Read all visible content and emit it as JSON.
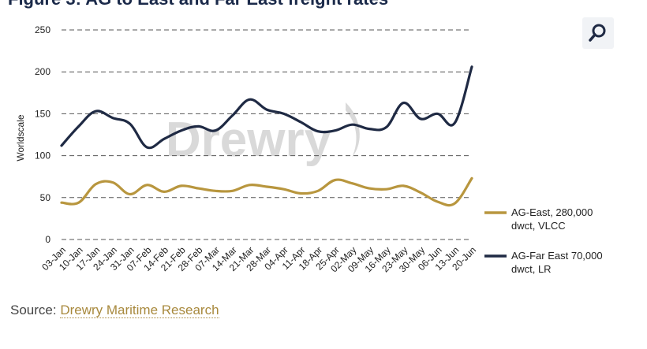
{
  "figure": {
    "title": "Figure 3: AG to East and Far East freight rates"
  },
  "zoom": {
    "icon": "magnifier-icon"
  },
  "source": {
    "prefix": "Source:",
    "link_text": "Drewry Maritime Research"
  },
  "watermark": {
    "text": "Drewry"
  },
  "colors": {
    "series_gold": "#b8963e",
    "series_navy": "#1f2a44",
    "grid": "#555555",
    "watermark": "#d9d9d9"
  },
  "chart_data": {
    "type": "line",
    "title": "",
    "xlabel": "",
    "ylabel": "Worldscale",
    "ylim": [
      0,
      250
    ],
    "yticks": [
      0,
      50,
      100,
      150,
      200,
      250
    ],
    "grid": "horizontal dashed",
    "legend_position": "right",
    "categories": [
      "03-Jan",
      "10-Jan",
      "17-Jan",
      "24-Jan",
      "31-Jan",
      "07-Feb",
      "14-Feb",
      "21-Feb",
      "28-Feb",
      "07-Mar",
      "14-Mar",
      "21-Mar",
      "28-Mar",
      "04-Apr",
      "11-Apr",
      "18-Apr",
      "25-Apr",
      "02-May",
      "09-May",
      "16-May",
      "23-May",
      "30-May",
      "06-Jun",
      "13-Jun",
      "20-Jun"
    ],
    "series": [
      {
        "name": "AG-East, 280,000 dwct, VLCC",
        "legend_lines": [
          "AG-East, 280,000",
          "dwct, VLCC"
        ],
        "color": "#b8963e",
        "values": [
          44,
          44,
          66,
          68,
          54,
          65,
          57,
          64,
          61,
          58,
          58,
          65,
          63,
          60,
          55,
          58,
          71,
          67,
          61,
          60,
          64,
          56,
          45,
          43,
          73
        ]
      },
      {
        "name": "AG-Far East 70,000 dwct, LR",
        "legend_lines": [
          "AG-Far East 70,000",
          "dwct, LR"
        ],
        "color": "#1f2a44",
        "values": [
          112,
          135,
          153,
          145,
          138,
          110,
          120,
          130,
          135,
          130,
          148,
          167,
          155,
          150,
          140,
          129,
          130,
          137,
          132,
          134,
          163,
          144,
          150,
          139,
          206
        ]
      }
    ]
  }
}
